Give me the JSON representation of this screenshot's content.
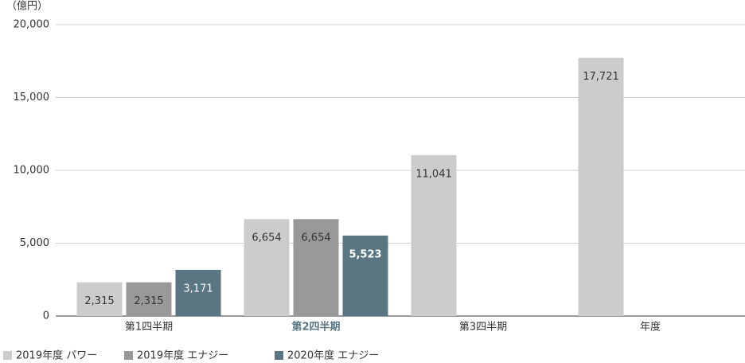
{
  "chart_data": {
    "type": "bar",
    "y_unit": "（億円）",
    "categories": [
      "第1四半期",
      "第2四半期",
      "第3四半期",
      "年度"
    ],
    "series": [
      {
        "name": "2019年度 パワー",
        "color": "#cccccc",
        "values": [
          2315,
          6654,
          11041,
          17721
        ],
        "value_labels": [
          "2,315",
          "6,654",
          "11,041",
          "17,721"
        ]
      },
      {
        "name": "2019年度 エナジー",
        "color": "#999999",
        "values": [
          2315,
          6654,
          null,
          null
        ],
        "value_labels": [
          "2,315",
          "6,654",
          null,
          null
        ]
      },
      {
        "name": "2020年度 エナジー",
        "color": "#5a7682",
        "values": [
          3171,
          5523,
          null,
          null
        ],
        "value_labels": [
          "3,171",
          "5,523",
          null,
          null
        ]
      }
    ],
    "ylim": [
      0,
      20000
    ],
    "yticks": [
      0,
      {
        "value": 5000,
        "label": "5,000"
      },
      {
        "value": 10000,
        "label": "10,000"
      },
      {
        "value": 15000,
        "label": "15,000"
      },
      {
        "value": 20000,
        "label": "20,000"
      }
    ],
    "grid": true,
    "legend": "bottom-left"
  }
}
